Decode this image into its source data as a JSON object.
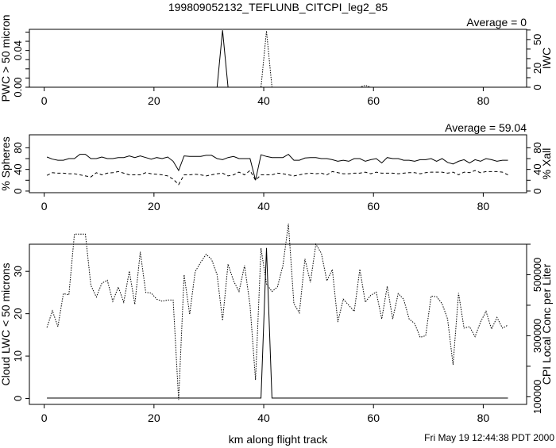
{
  "title": "199809052132_TEFLUNB_CITCPI_leg2_85",
  "footer": {
    "xlabel": "km along flight track",
    "timestamp": "Fri May 19 12:44:38 PDT 2000"
  },
  "chart_data": [
    {
      "type": "line",
      "annotation": "Average = 0",
      "ylabel": "PWC > 50 micron",
      "ylabel_right": "IWC",
      "xlim": [
        -2.7,
        87.9
      ],
      "ylim": [
        0,
        0.063
      ],
      "ylim_right": [
        0,
        60.7
      ],
      "x_ticks": [
        "0",
        "20",
        "40",
        "60",
        "80"
      ],
      "y_ticks": [
        "0.00",
        "0.04"
      ],
      "y_ticks_right": [
        "0",
        "20",
        "50"
      ],
      "series": [
        {
          "axis": "left",
          "style": "solid",
          "x": [
            0.5,
            31.5,
            32.5,
            33.5,
            84.5
          ],
          "values": [
            0,
            0,
            0.062,
            0,
            0
          ]
        },
        {
          "axis": "right",
          "style": "dotted",
          "x": [
            0.5,
            39.5,
            40.5,
            41.5,
            57.5,
            58.5,
            59.5,
            84.5
          ],
          "values": [
            0,
            0,
            59,
            0,
            0,
            2,
            0,
            0
          ]
        }
      ]
    },
    {
      "type": "line",
      "annotation": "Average = 59.04",
      "ylabel": "% Spheres",
      "ylabel_right": "% Xall",
      "xlim": [
        -2.7,
        87.9
      ],
      "ylim": [
        -3,
        104
      ],
      "x_ticks": [
        "0",
        "20",
        "40",
        "60",
        "80"
      ],
      "y_ticks": [
        "0",
        "40",
        "80"
      ],
      "series": [
        {
          "axis": "left",
          "style": "solid",
          "values": [
            63,
            59,
            57,
            57,
            60,
            60,
            68,
            68,
            60,
            60,
            63,
            60,
            60,
            62,
            62,
            65,
            62,
            65,
            62,
            59,
            62,
            60,
            63,
            55,
            38,
            65,
            64,
            64,
            64,
            66,
            66,
            60,
            58,
            62,
            64,
            60,
            60,
            60,
            20,
            67,
            64,
            62,
            62,
            62,
            68,
            57,
            57,
            61,
            62,
            62,
            60,
            60,
            58,
            55,
            57,
            55,
            60,
            60,
            55,
            58,
            60,
            52,
            62,
            60,
            60,
            57,
            57,
            55,
            58,
            58,
            60,
            55,
            60,
            53,
            50,
            55,
            58,
            52,
            58,
            55,
            60,
            58,
            55,
            57,
            57
          ]
        },
        {
          "axis": "right",
          "style": "dashed",
          "values": [
            29,
            34,
            33,
            33,
            32,
            32,
            30,
            28,
            26,
            34,
            30,
            33,
            34,
            36,
            33,
            30,
            30,
            30,
            34,
            32,
            31,
            30,
            28,
            22,
            12,
            30,
            30,
            31,
            30,
            28,
            30,
            32,
            33,
            28,
            30,
            35,
            30,
            38,
            20,
            30,
            30,
            30,
            33,
            32,
            30,
            28,
            30,
            32,
            33,
            32,
            33,
            30,
            36,
            34,
            32,
            32,
            33,
            33,
            35,
            32,
            35,
            33,
            33,
            33,
            32,
            33,
            34,
            34,
            32,
            34,
            35,
            35,
            35,
            33,
            35,
            30,
            35,
            34,
            38,
            34,
            36,
            36,
            36,
            35,
            30
          ]
        }
      ]
    },
    {
      "type": "line",
      "ylabel": "Cloud LWC < 50 microns",
      "ylabel_right": "CPI Local Conc per Liter",
      "xlabel": "km along flight track",
      "xlim": [
        -2.7,
        87.9
      ],
      "ylim": [
        -1.4,
        36.4
      ],
      "ylim_right": [
        75000,
        600000
      ],
      "x_ticks": [
        "0",
        "20",
        "40",
        "60",
        "80"
      ],
      "y_ticks": [
        "0",
        "10",
        "20",
        "30"
      ],
      "y_ticks_right": [
        "100000",
        "300000",
        "500000"
      ],
      "series": [
        {
          "axis": "left",
          "style": "solid",
          "x": [
            0.5,
            39.5,
            40.5,
            41.5,
            84.5
          ],
          "values": [
            0.1,
            0.1,
            35.5,
            0.1,
            0.1
          ]
        },
        {
          "axis": "right",
          "style": "dotted",
          "values": [
            327000,
            382000,
            330000,
            438000,
            434000,
            633000,
            633000,
            633000,
            465000,
            427000,
            472000,
            482000,
            413000,
            460000,
            410000,
            512000,
            403000,
            575000,
            442000,
            440000,
            420000,
            413000,
            417000,
            417000,
            90000,
            500000,
            370000,
            510000,
            540000,
            567000,
            550000,
            500000,
            350000,
            535000,
            480000,
            445000,
            530000,
            400000,
            155000,
            587000,
            470000,
            445000,
            460000,
            530000,
            667000,
            405000,
            375000,
            552000,
            475000,
            600000,
            570000,
            480000,
            517000,
            345000,
            420000,
            400000,
            380000,
            518000,
            410000,
            433000,
            443000,
            355000,
            462000,
            355000,
            438000,
            420000,
            355000,
            340000,
            295000,
            300000,
            430000,
            428000,
            405000,
            355000,
            205000,
            440000,
            325000,
            330000,
            297000,
            345000,
            380000,
            322000,
            360000,
            325000,
            335000
          ]
        }
      ]
    }
  ]
}
